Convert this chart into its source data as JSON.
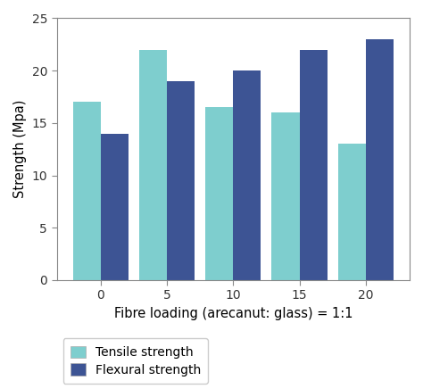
{
  "categories": [
    "0",
    "5",
    "10",
    "15",
    "20"
  ],
  "tensile_values": [
    17,
    22,
    16.5,
    16,
    13
  ],
  "flexural_values": [
    14,
    19,
    20,
    22,
    23
  ],
  "tensile_color": "#7ECECE",
  "flexural_color": "#3D5494",
  "xlabel": "Fibre loading (arecanut: glass) = 1:1",
  "ylabel": "Strength (Mpa)",
  "ylim": [
    0,
    25
  ],
  "yticks": [
    0,
    5,
    10,
    15,
    20,
    25
  ],
  "bar_width": 0.42,
  "legend_tensile": "Tensile strength",
  "legend_flexural": "Flexural strength",
  "background_color": "#ffffff",
  "tick_label_fontsize": 10,
  "axis_label_fontsize": 10.5,
  "legend_fontsize": 10,
  "spine_color": "#888888"
}
